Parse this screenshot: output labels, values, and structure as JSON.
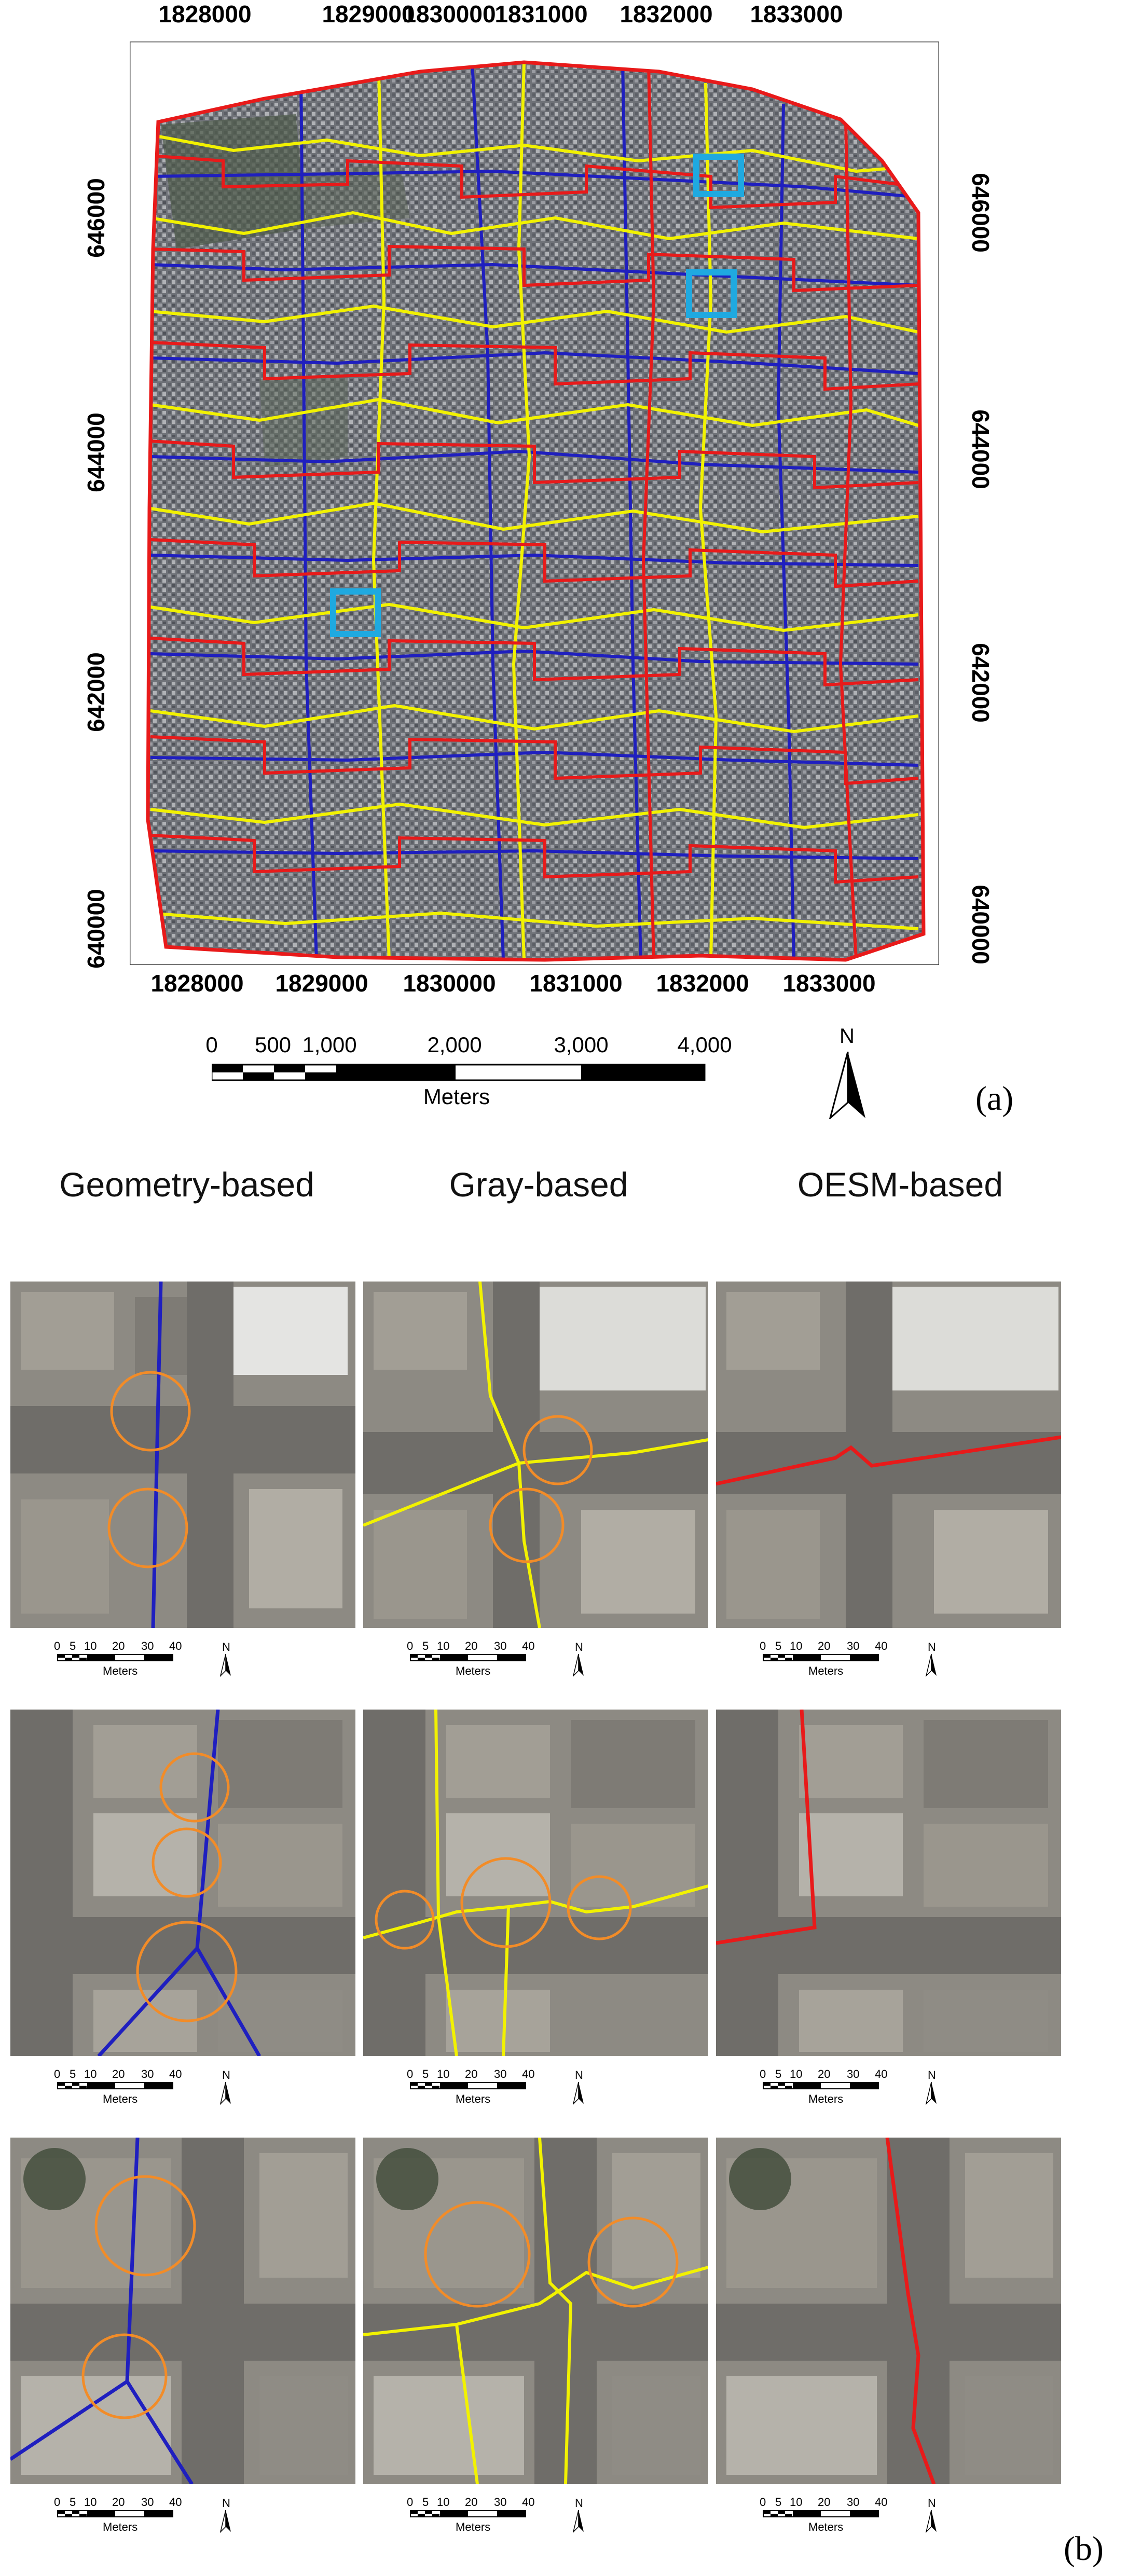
{
  "panel_a": {
    "label": "(a)",
    "x_ticks": [
      "1828000",
      "1829000",
      "1830000",
      "1831000",
      "1832000",
      "1833000"
    ],
    "y_ticks": [
      "646000",
      "644000",
      "642000",
      "640000"
    ],
    "scale_bar": {
      "ticks": [
        "0",
        "500",
        "1,000",
        "2,000",
        "3,000",
        "4,000"
      ],
      "unit": "Meters"
    },
    "north": "N",
    "colors": {
      "geometry": "#1f1fbf",
      "gray": "#f2f200",
      "oesm": "#e81a1a",
      "highlight": "#1fa9e0"
    }
  },
  "panel_b": {
    "label": "(b)",
    "columns": [
      "Geometry-based",
      "Gray-based",
      "OESM-based"
    ],
    "small_scale": {
      "ticks": [
        "0",
        "5",
        "10",
        "20",
        "30",
        "40"
      ],
      "unit": "Meters",
      "north": "N"
    }
  }
}
